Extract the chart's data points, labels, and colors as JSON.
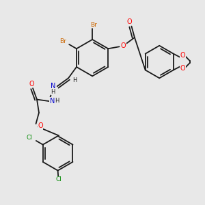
{
  "background_color": "#e8e8e8",
  "figsize": [
    3.0,
    3.0
  ],
  "dpi": 100,
  "colors": {
    "bond": "#1a1a1a",
    "bromine": "#cc6600",
    "oxygen": "#ff0000",
    "nitrogen": "#0000cc",
    "chlorine": "#008800",
    "carbon": "#1a1a1a"
  },
  "xlim": [
    0,
    10
  ],
  "ylim": [
    0,
    10
  ]
}
